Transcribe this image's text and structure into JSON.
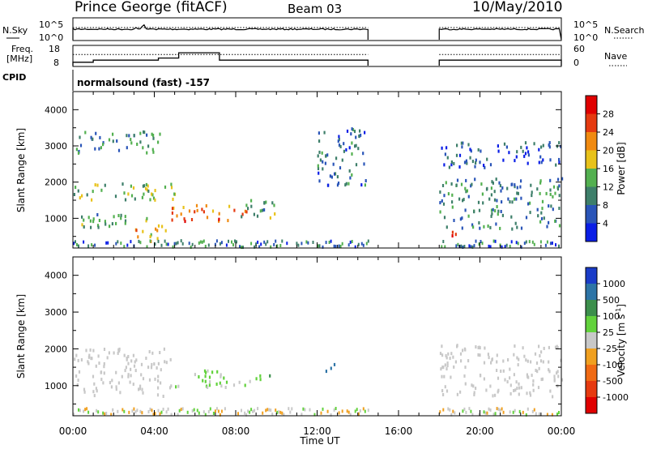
{
  "header": {
    "station": "Prince George (fitACF)",
    "beam": "Beam 03",
    "date": "10/May/2010"
  },
  "top_panels": {
    "noise": {
      "left_label": "N.Sky",
      "right_label": "N.Search",
      "left_ticks": [
        "10^5",
        "10^0"
      ],
      "right_ticks": [
        "10^5",
        "10^0"
      ]
    },
    "freq": {
      "left_label_1": "Freq.",
      "left_label_2": "[MHz]",
      "right_label": "Nave",
      "left_ticks": [
        "18",
        "8"
      ],
      "right_ticks": [
        "60",
        "0"
      ]
    },
    "cpid": {
      "label": "CPID",
      "text": "normalsound (fast) -157"
    }
  },
  "axes": {
    "ylabel": "Slant Range [km]",
    "xlabel": "Time UT",
    "y_ticks": [
      "1000",
      "2000",
      "3000",
      "4000"
    ],
    "x_ticks": [
      "00:00",
      "04:00",
      "08:00",
      "12:00",
      "16:00",
      "20:00",
      "00:00"
    ]
  },
  "colorbars": {
    "power": {
      "label": "Power [dB]",
      "ticks": [
        "4",
        "8",
        "12",
        "16",
        "20",
        "24",
        "28"
      ],
      "colors": [
        "#0a1ee6",
        "#2a55b8",
        "#3e7f6a",
        "#53b050",
        "#e8c21a",
        "#f08a10",
        "#e53a10",
        "#e00000"
      ]
    },
    "velocity": {
      "label": "Velocity",
      "label_unit": "[m s",
      "label_exp": "-1",
      "label_close": "]",
      "ticks": [
        "1000",
        "500",
        "100",
        "25",
        "-25",
        "-100",
        "-500",
        "-1000"
      ],
      "colors": [
        "#1a3cc8",
        "#2d74a6",
        "#3c8f4c",
        "#62d23c",
        "#c8c8c8",
        "#f0a020",
        "#f06a14",
        "#e63a10",
        "#e00000"
      ]
    }
  },
  "chart_data": {
    "type": "heatmap",
    "x_range_hours": [
      0,
      24
    ],
    "y_range_km": [
      180,
      4500
    ],
    "data_gap_hours": [
      14.5,
      18.0
    ],
    "power_range_db": [
      0,
      30
    ],
    "velocity_range_ms": [
      -1000,
      1000
    ],
    "noise_series_approx": {
      "sky_level": "~10^4",
      "segments_hours": [
        [
          0,
          14.5
        ],
        [
          18.0,
          24
        ]
      ]
    },
    "frequency_mhz_approx": [
      {
        "from": 0,
        "to": 1.0,
        "value": 10
      },
      {
        "from": 1.0,
        "to": 4.2,
        "value": 11
      },
      {
        "from": 4.2,
        "to": 5.2,
        "value": 12
      },
      {
        "from": 5.2,
        "to": 7.2,
        "value": 14.5
      },
      {
        "from": 7.2,
        "to": 14.5,
        "value": 11
      },
      {
        "from": 18.0,
        "to": 24,
        "value": 11
      }
    ],
    "nave_approx": 34,
    "power_regions_approx": [
      {
        "t0": 0.0,
        "t1": 5.0,
        "r0": 1450,
        "r1": 1950,
        "db": 14
      },
      {
        "t0": 0.0,
        "t1": 4.5,
        "r0": 2800,
        "r1": 3400,
        "db": 9
      },
      {
        "t0": 0.0,
        "t1": 4.0,
        "r0": 700,
        "r1": 1100,
        "db": 12
      },
      {
        "t0": 3.0,
        "t1": 4.8,
        "r0": 350,
        "r1": 800,
        "db": 18
      },
      {
        "t0": 4.8,
        "t1": 8.5,
        "r0": 900,
        "r1": 1350,
        "db": 22
      },
      {
        "t0": 8.0,
        "t1": 10.0,
        "r0": 1000,
        "r1": 1500,
        "db": 12
      },
      {
        "t0": 12.0,
        "t1": 14.5,
        "r0": 1900,
        "r1": 3500,
        "db": 8
      },
      {
        "t0": 18.0,
        "t1": 24.0,
        "r0": 700,
        "r1": 2100,
        "db": 9
      },
      {
        "t0": 18.0,
        "t1": 19.0,
        "r0": 500,
        "r1": 700,
        "db": 22
      },
      {
        "t0": 18.0,
        "t1": 24.0,
        "r0": 2400,
        "r1": 3100,
        "db": 6
      }
    ],
    "velocity_regions_approx": [
      {
        "t0": 0.0,
        "t1": 4.8,
        "r0": 700,
        "r1": 2000,
        "ms": 0
      },
      {
        "t0": 5.0,
        "t1": 8.8,
        "r0": 950,
        "r1": 1400,
        "ms": 120
      },
      {
        "t0": 8.8,
        "t1": 9.8,
        "r0": 1150,
        "r1": 1400,
        "ms": 300
      },
      {
        "t0": 12.3,
        "t1": 13.0,
        "r0": 1300,
        "r1": 1600,
        "ms": 700
      },
      {
        "t0": 18.0,
        "t1": 24.0,
        "r0": 700,
        "r1": 2100,
        "ms": 0
      }
    ]
  }
}
